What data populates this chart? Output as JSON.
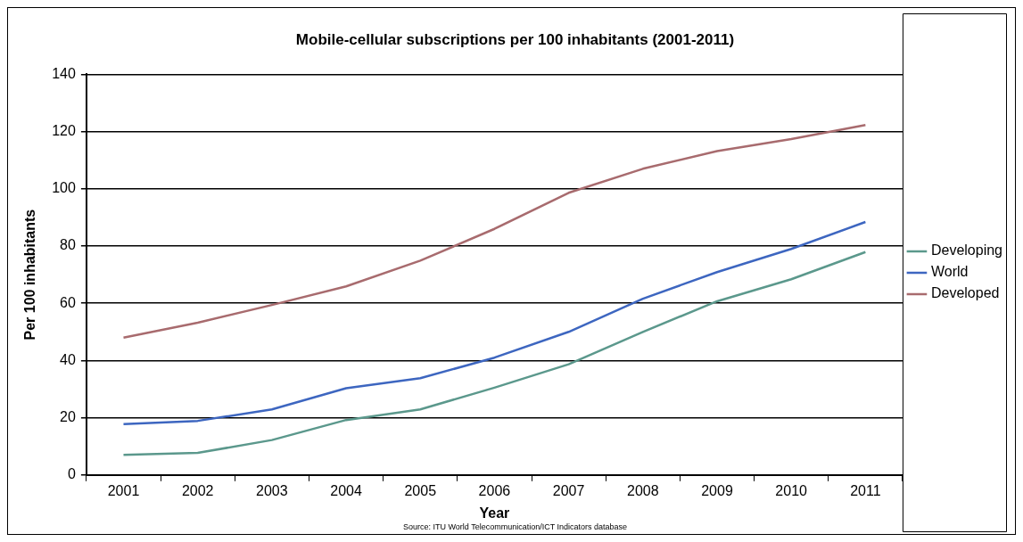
{
  "chart_data": {
    "type": "line",
    "title": "Mobile-cellular subscriptions per 100 inhabitants (2001-2011)",
    "xlabel": "Year",
    "ylabel": "Per 100 inhabitants",
    "annotations": [
      "Source: ITU World Telecommunication/ICT Indicators database"
    ],
    "categories": [
      "2001",
      "2002",
      "2003",
      "2004",
      "2005",
      "2006",
      "2007",
      "2008",
      "2009",
      "2010",
      "2011"
    ],
    "series": [
      {
        "name": "Developing",
        "color": "#5b988c",
        "values": [
          7.0,
          7.7,
          12.2,
          19.2,
          22.9,
          30.5,
          38.7,
          50.0,
          60.7,
          68.4,
          77.9
        ]
      },
      {
        "name": "World",
        "color": "#3d66c0",
        "values": [
          17.8,
          18.9,
          22.9,
          30.3,
          33.8,
          41.0,
          50.0,
          61.6,
          70.9,
          79.0,
          88.4
        ]
      },
      {
        "name": "Developed",
        "color": "#a86b6e",
        "values": [
          48.0,
          53.2,
          59.4,
          65.9,
          74.9,
          86.0,
          98.6,
          107.0,
          113.2,
          117.4,
          122.3
        ]
      }
    ],
    "ylim": [
      0,
      140
    ],
    "yticks": [
      0,
      20,
      40,
      60,
      80,
      100,
      120,
      140
    ],
    "grid": "y",
    "legend": "right",
    "marker": "none",
    "line_style": "solid"
  }
}
